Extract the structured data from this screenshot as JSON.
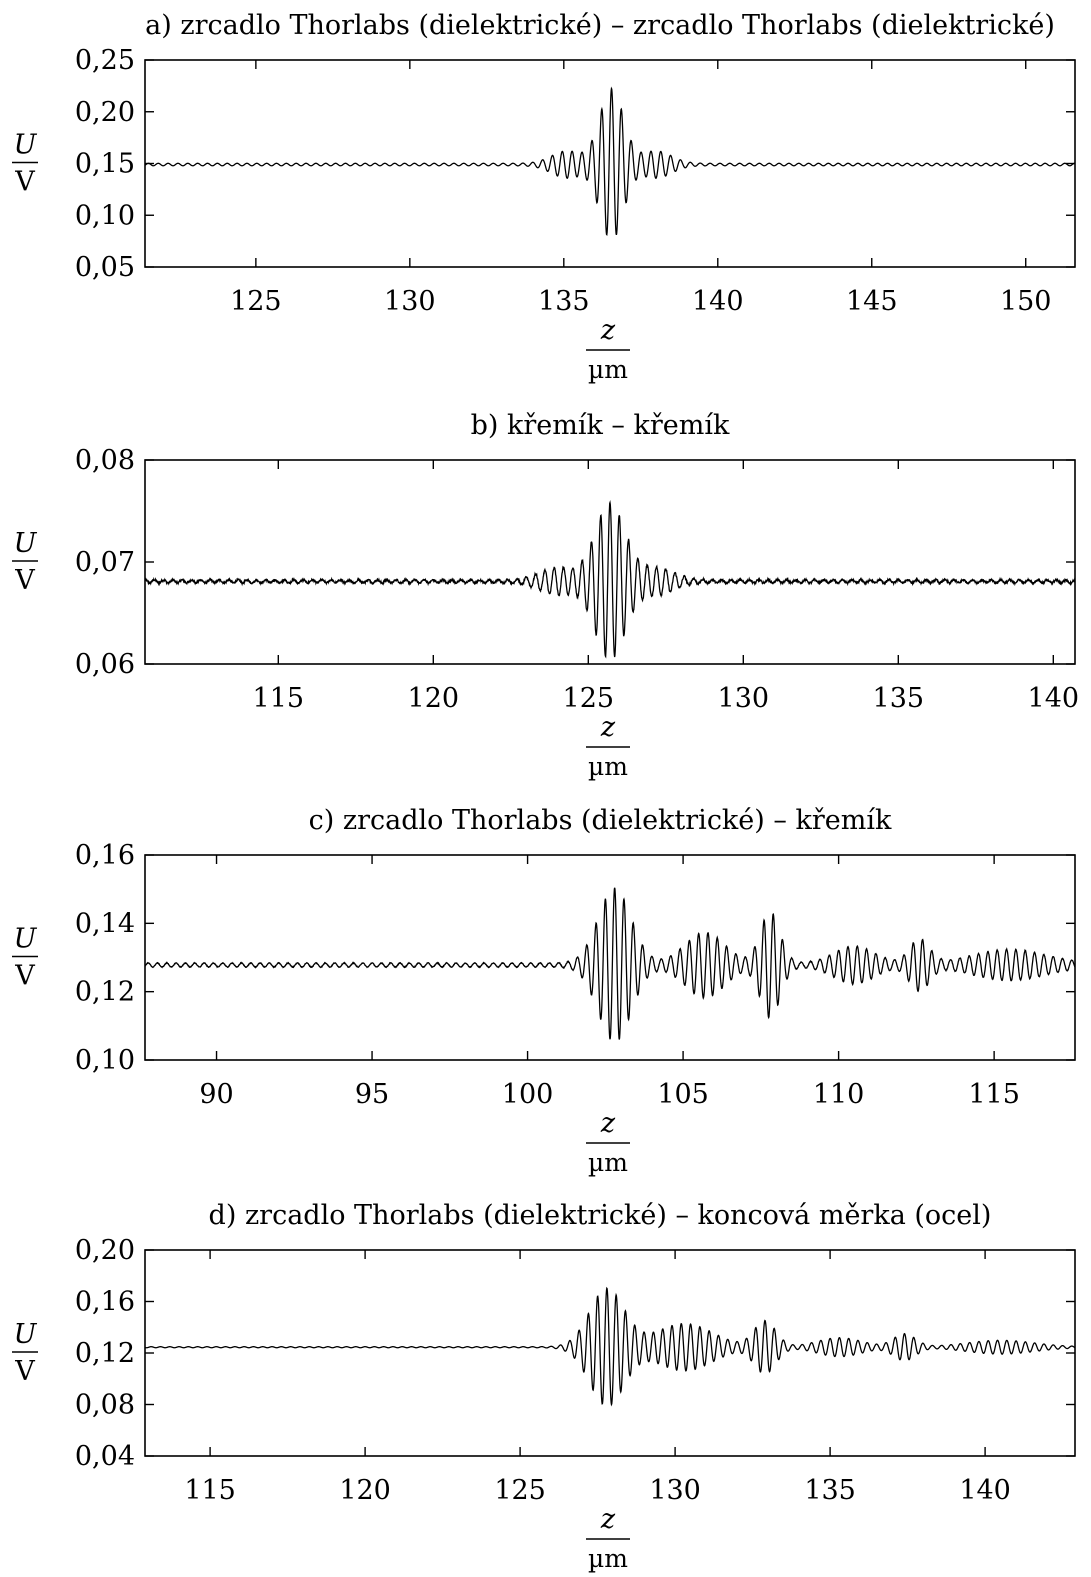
{
  "ylabel_unit": "V",
  "xlabel_unit": "µm",
  "ylabel_symbol": "U",
  "xlabel_symbol": "z",
  "line_color": "#000000",
  "chart_data": [
    {
      "type": "line",
      "title": "a) zrcadlo Thorlabs (dielektrické) – zrcadlo Thorlabs (dielektrické)",
      "xlim": [
        121.4,
        151.6
      ],
      "ylim": [
        0.05,
        0.25
      ],
      "xticks": [
        125,
        130,
        135,
        140,
        145,
        150
      ],
      "xtick_labels": [
        "125",
        "130",
        "135",
        "140",
        "145",
        "150"
      ],
      "yticks": [
        0.05,
        0.1,
        0.15,
        0.2,
        0.25
      ],
      "ytick_labels": [
        "0,05",
        "0,10",
        "0,15",
        "0,20",
        "0,25"
      ],
      "grid": false,
      "series": [
        {
          "baseline": 0.149,
          "period": 0.32,
          "bg_amplitude": 0.0012,
          "noise": 0.0,
          "packets": [
            {
              "center": 136.55,
              "width": 0.55,
              "amplitude": 0.072
            },
            {
              "center": 135.1,
              "width": 0.7,
              "amplitude": 0.012
            },
            {
              "center": 138.0,
              "width": 0.7,
              "amplitude": 0.012
            }
          ]
        }
      ]
    },
    {
      "type": "line",
      "title": "b) křemík – křemík",
      "xlim": [
        110.7,
        140.7
      ],
      "ylim": [
        0.06,
        0.08
      ],
      "xticks": [
        115,
        120,
        125,
        130,
        135,
        140
      ],
      "xtick_labels": [
        "115",
        "120",
        "125",
        "130",
        "135",
        "140"
      ],
      "yticks": [
        0.06,
        0.07,
        0.08
      ],
      "ytick_labels": [
        "0,06",
        "0,07",
        "0,08"
      ],
      "grid": false,
      "series": [
        {
          "baseline": 0.0681,
          "period": 0.3,
          "bg_amplitude": 0.00015,
          "noise": 0.0002,
          "packets": [
            {
              "center": 125.7,
              "width": 0.7,
              "amplitude": 0.0075
            },
            {
              "center": 124.0,
              "width": 0.8,
              "amplitude": 0.0012
            },
            {
              "center": 127.2,
              "width": 0.8,
              "amplitude": 0.0012
            }
          ]
        }
      ]
    },
    {
      "type": "line",
      "title": "c) zrcadlo Thorlabs (dielektrické) – křemík",
      "xlim": [
        87.7,
        117.6
      ],
      "ylim": [
        0.1,
        0.16
      ],
      "xticks": [
        90,
        95,
        100,
        105,
        110,
        115
      ],
      "xtick_labels": [
        "90",
        "95",
        "100",
        "105",
        "110",
        "115"
      ],
      "yticks": [
        0.1,
        0.12,
        0.14,
        0.16
      ],
      "ytick_labels": [
        "0,10",
        "0,12",
        "0,14",
        "0,16"
      ],
      "grid": false,
      "series": [
        {
          "baseline": 0.1278,
          "period": 0.3,
          "bg_amplitude": 0.0006,
          "noise": 0.0002,
          "packets": [
            {
              "center": 102.8,
              "width": 0.75,
              "amplitude": 0.022
            },
            {
              "center": 105.7,
              "width": 0.9,
              "amplitude": 0.009
            },
            {
              "center": 107.8,
              "width": 0.45,
              "amplitude": 0.015
            },
            {
              "center": 110.5,
              "width": 0.9,
              "amplitude": 0.005
            },
            {
              "center": 112.6,
              "width": 0.45,
              "amplitude": 0.007
            },
            {
              "center": 115.5,
              "width": 1.6,
              "amplitude": 0.004
            }
          ]
        }
      ]
    },
    {
      "type": "line",
      "title": "d) zrcadlo Thorlabs (dielektrické) – koncová měrka (ocel)",
      "xlim": [
        112.9,
        142.9
      ],
      "ylim": [
        0.04,
        0.2
      ],
      "xticks": [
        115,
        120,
        125,
        130,
        135,
        140
      ],
      "xtick_labels": [
        "115",
        "120",
        "125",
        "130",
        "135",
        "140"
      ],
      "yticks": [
        0.04,
        0.08,
        0.12,
        0.16,
        0.2
      ],
      "ytick_labels": [
        "0,04",
        "0,08",
        "0,12",
        "0,16",
        "0,20"
      ],
      "grid": false,
      "series": [
        {
          "baseline": 0.1245,
          "period": 0.3,
          "bg_amplitude": 0.0004,
          "noise": 0.0,
          "packets": [
            {
              "center": 127.8,
              "width": 0.8,
              "amplitude": 0.045
            },
            {
              "center": 130.3,
              "width": 1.3,
              "amplitude": 0.018
            },
            {
              "center": 132.9,
              "width": 0.5,
              "amplitude": 0.02
            },
            {
              "center": 135.3,
              "width": 1.0,
              "amplitude": 0.007
            },
            {
              "center": 137.4,
              "width": 0.5,
              "amplitude": 0.01
            },
            {
              "center": 140.5,
              "width": 1.5,
              "amplitude": 0.005
            }
          ]
        }
      ]
    }
  ]
}
